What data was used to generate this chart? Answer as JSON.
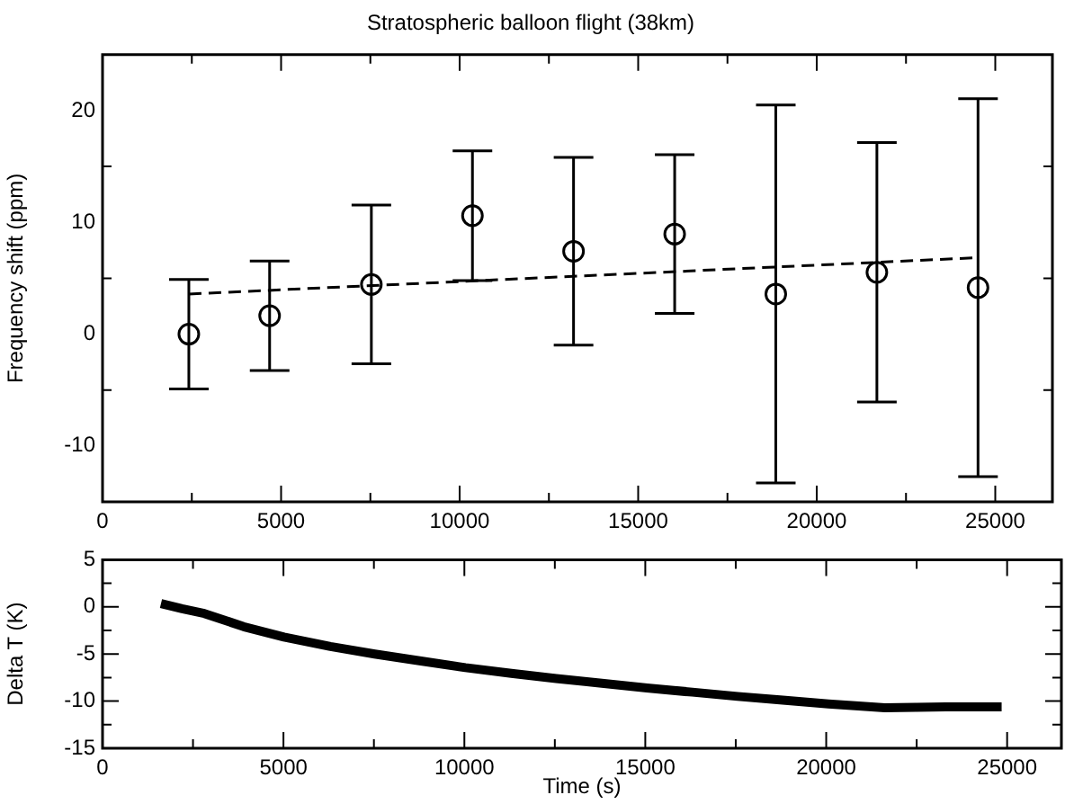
{
  "chart_data": [
    {
      "type": "scatter",
      "title": "Stratospheric balloon flight (38km)",
      "ylabel": "Frequency shift (ppm)",
      "xlim": [
        0,
        26600
      ],
      "ylim": [
        -15,
        25
      ],
      "xticks": [
        0,
        {
          "value": 2500,
          "label": null
        },
        5000,
        {
          "value": 7500,
          "label": null
        },
        10000,
        {
          "value": 12500,
          "label": null
        },
        15000,
        {
          "value": 17500,
          "label": null
        },
        20000,
        {
          "value": 22500,
          "label": null
        },
        25000
      ],
      "yticks": [
        {
          "value": -15,
          "label": null
        },
        -10,
        {
          "value": -5,
          "label": null
        },
        0,
        {
          "value": 5,
          "label": null
        },
        10,
        {
          "value": 15,
          "label": null
        },
        20
      ],
      "grid": false,
      "legend": false,
      "series": [
        {
          "type": "scatter",
          "color": "#000000",
          "marker": "circle",
          "x": [
            2417,
            4679,
            7528,
            10359,
            13190,
            16022,
            18854,
            21685,
            24517
          ],
          "values": [
            0,
            1.65,
            4.44,
            10.6,
            7.41,
            8.95,
            3.59,
            5.53,
            4.16
          ],
          "errors": [
            4.9,
            4.9,
            7.1,
            5.8,
            8.4,
            7.1,
            16.9,
            11.6,
            16.9
          ]
        },
        {
          "type": "line",
          "color": "#000000",
          "line_style": "dashed",
          "marker": "none",
          "x": [
            2417,
            24517
          ],
          "values": [
            3.59,
            6.84
          ]
        }
      ]
    },
    {
      "type": "line",
      "xlabel": "Time (s)",
      "ylabel": "Delta T (K)",
      "xlim": [
        0,
        26500
      ],
      "ylim": [
        -15,
        5
      ],
      "xticks": [
        0,
        {
          "value": 2500,
          "label": null
        },
        5000,
        {
          "value": 7500,
          "label": null
        },
        10000,
        {
          "value": 12500,
          "label": null
        },
        15000,
        {
          "value": 17500,
          "label": null
        },
        20000,
        {
          "value": 22500,
          "label": null
        },
        25000
      ],
      "yticks": [
        -15,
        {
          "value": -12.5,
          "label": null
        },
        -10,
        {
          "value": -7.5,
          "label": null
        },
        -5,
        {
          "value": -2.5,
          "label": null
        },
        0,
        {
          "value": 2.5,
          "label": null
        },
        5
      ],
      "grid": false,
      "legend": false,
      "series": [
        {
          "color": "#000000",
          "x": [
            1615,
            2200,
            2812,
            3900,
            5015,
            6300,
            7523,
            8800,
            10030,
            11300,
            12538,
            13800,
            15046,
            16300,
            17553,
            18800,
            20061,
            20800,
            21618,
            22500,
            23300,
            24100,
            24848
          ],
          "values": [
            0.35,
            -0.2,
            -0.7,
            -2.1,
            -3.2,
            -4.2,
            -5.0,
            -5.75,
            -6.45,
            -7.05,
            -7.6,
            -8.1,
            -8.6,
            -9.05,
            -9.5,
            -9.9,
            -10.3,
            -10.5,
            -10.7,
            -10.65,
            -10.6,
            -10.6,
            -10.6
          ]
        }
      ]
    }
  ]
}
